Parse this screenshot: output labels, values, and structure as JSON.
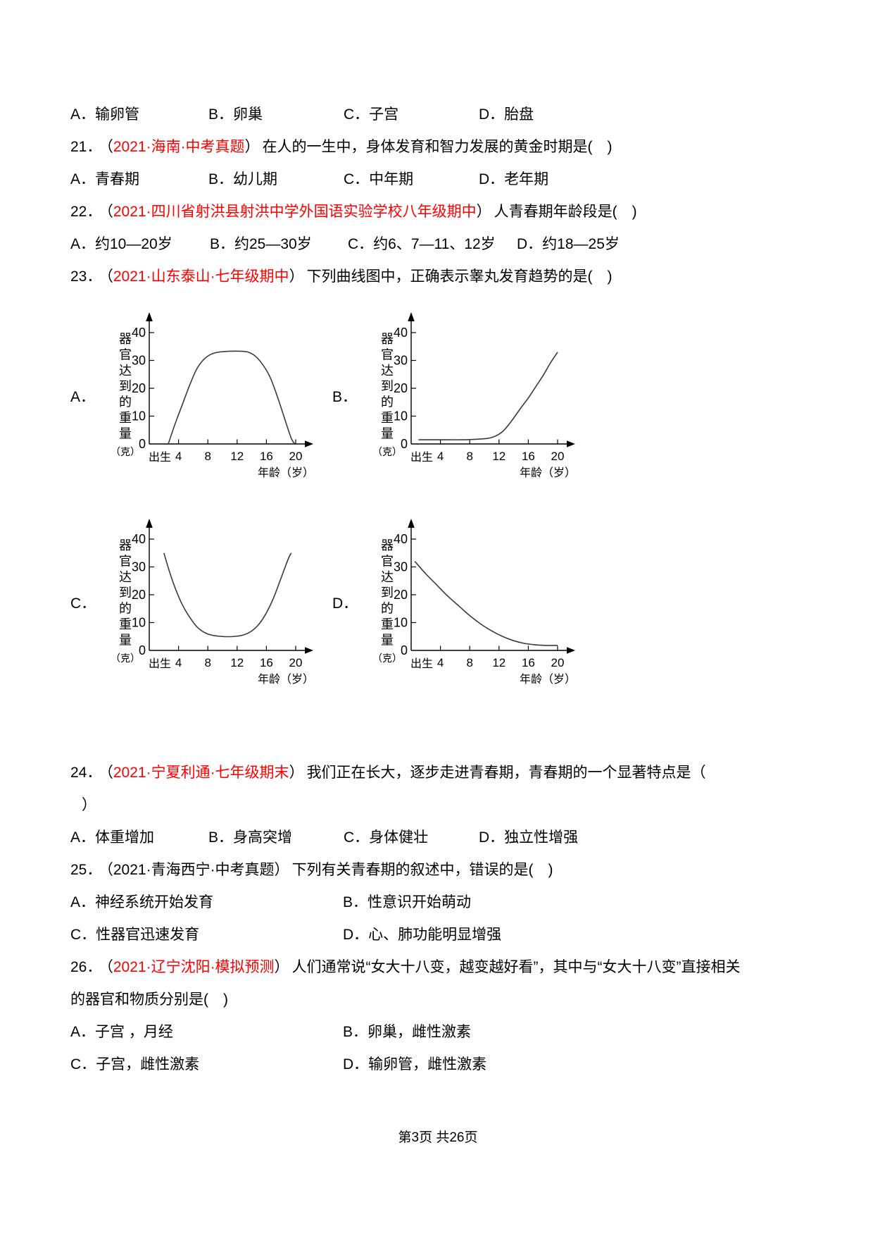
{
  "punct": {
    "open": "（",
    "close": "）"
  },
  "carryover_options": {
    "a": "A．输卵管",
    "b": "B．卵巢",
    "c": "C．子宫",
    "d": "D．胎盘"
  },
  "questions": [
    {
      "number": "21．",
      "source": "2021·海南·中考真题",
      "stem": "在人的一生中，身体发育和智力发展的黄金时期是(　)",
      "options": [
        "A．青春期",
        "B．幼儿期",
        "C．中年期",
        "D．老年期"
      ]
    },
    {
      "number": "22．",
      "source": "2021·四川省射洪县射洪中学外国语实验学校八年级期中",
      "stem": "人青春期年龄段是(　)",
      "options": [
        "A．约10—20岁",
        "B．约25—30岁",
        "C．约6、7—11、12岁",
        "D．约18—25岁"
      ]
    },
    {
      "number": "23．",
      "source": "2021·山东泰山·七年级期中",
      "stem": "下列曲线图中，正确表示睾丸发育趋势的是(　)"
    },
    {
      "number": "24．",
      "source": "2021·宁夏利通·七年级期末",
      "stem": "我们正在长大，逐步走进青春期，青春期的一个显著特点是（",
      "stem2": "）",
      "options": [
        "A．体重增加",
        "B．身高突增",
        "C．身体健壮",
        "D．独立性增强"
      ]
    },
    {
      "number": "25．",
      "source": "2021·青海西宁·中考真题",
      "stem": "下列有关青春期的叙述中，错误的是(　)",
      "options": [
        "A．神经系统开始发育",
        "B．性意识开始萌动",
        "C．性器官迅速发育",
        "D．心、肺功能明显增强"
      ]
    },
    {
      "number": "26．",
      "source": "2021·辽宁沈阳·模拟预测",
      "stem": "人们通常说“女大十八变，越变越好看”，其中与“女大十八变”直接相关",
      "stem2": "的器官和物质分别是(　)",
      "options": [
        "A．子宫 ，月经",
        "B．卵巢，雌性激素",
        "C．子宫，雌性激素",
        "D．输卵管，雌性激素"
      ]
    }
  ],
  "chart_data": [
    {
      "type": "line",
      "label": "A．",
      "y_axis_chars": [
        "器",
        "官",
        "达",
        "到",
        "的",
        "重",
        "量"
      ],
      "y_axis_unit": "（克）",
      "y_ticks": [
        0,
        10,
        20,
        30,
        40
      ],
      "x_tick_years": [
        4,
        8,
        12,
        16,
        20
      ],
      "birth_label": "出生",
      "x_axis_label": "年龄（岁）",
      "ylim": [
        0,
        45
      ],
      "xlim": [
        0,
        22
      ],
      "points": [
        [
          2.6,
          0
        ],
        [
          3.5,
          7
        ],
        [
          4.5,
          14
        ],
        [
          5.5,
          21
        ],
        [
          6.5,
          27
        ],
        [
          7.5,
          30.5
        ],
        [
          8.5,
          32.3
        ],
        [
          9.5,
          33
        ],
        [
          11,
          33.3
        ],
        [
          12.5,
          33.3
        ],
        [
          13.5,
          33
        ],
        [
          14.5,
          31.5
        ],
        [
          15.5,
          28.5
        ],
        [
          16.5,
          24
        ],
        [
          17.5,
          17
        ],
        [
          18.5,
          9
        ],
        [
          19.4,
          2
        ],
        [
          19.9,
          0
        ]
      ]
    },
    {
      "type": "line",
      "label": "B．",
      "y_axis_chars": [
        "器",
        "官",
        "达",
        "到",
        "的",
        "重",
        "量"
      ],
      "y_axis_unit": "（克）",
      "y_ticks": [
        0,
        10,
        20,
        30,
        40
      ],
      "x_tick_years": [
        4,
        8,
        12,
        16,
        20
      ],
      "birth_label": "出生",
      "x_axis_label": "年龄（岁）",
      "ylim": [
        0,
        45
      ],
      "xlim": [
        0,
        22
      ],
      "points": [
        [
          1,
          1.5
        ],
        [
          4,
          1.5
        ],
        [
          7,
          1.5
        ],
        [
          9,
          1.7
        ],
        [
          10.5,
          2
        ],
        [
          11.5,
          2.8
        ],
        [
          12.5,
          4.5
        ],
        [
          13.5,
          7.5
        ],
        [
          15,
          13
        ],
        [
          16,
          16.5
        ],
        [
          17,
          20.5
        ],
        [
          18,
          24.5
        ],
        [
          19,
          29
        ],
        [
          20,
          33
        ]
      ]
    },
    {
      "type": "line",
      "label": "C．",
      "y_axis_chars": [
        "器",
        "官",
        "达",
        "到",
        "的",
        "重",
        "量"
      ],
      "y_axis_unit": "（克）",
      "y_ticks": [
        0,
        10,
        20,
        30,
        40
      ],
      "x_tick_years": [
        4,
        8,
        12,
        16,
        20
      ],
      "birth_label": "出生",
      "x_axis_label": "年龄（岁）",
      "ylim": [
        0,
        45
      ],
      "xlim": [
        0,
        22
      ],
      "points": [
        [
          2,
          35
        ],
        [
          2.8,
          28
        ],
        [
          3.6,
          22
        ],
        [
          4.5,
          16.5
        ],
        [
          5.5,
          12
        ],
        [
          6.5,
          8.5
        ],
        [
          7.5,
          6.5
        ],
        [
          8.5,
          5.5
        ],
        [
          10,
          5
        ],
        [
          11.5,
          5
        ],
        [
          12.8,
          5.5
        ],
        [
          14,
          7
        ],
        [
          15,
          9.5
        ],
        [
          16,
          13.5
        ],
        [
          17,
          19
        ],
        [
          18,
          26
        ],
        [
          19,
          33
        ],
        [
          19.4,
          35
        ]
      ]
    },
    {
      "type": "line",
      "label": "D．",
      "y_axis_chars": [
        "器",
        "官",
        "达",
        "到",
        "的",
        "重",
        "量"
      ],
      "y_axis_unit": "（克）",
      "y_ticks": [
        0,
        10,
        20,
        30,
        40
      ],
      "x_tick_years": [
        4,
        8,
        12,
        16,
        20
      ],
      "birth_label": "出生",
      "x_axis_label": "年龄（岁）",
      "ylim": [
        0,
        45
      ],
      "xlim": [
        0,
        22
      ],
      "points": [
        [
          0.5,
          32
        ],
        [
          2,
          27.5
        ],
        [
          3.5,
          23.5
        ],
        [
          5,
          19.5
        ],
        [
          6.5,
          16
        ],
        [
          8,
          12.5
        ],
        [
          9.5,
          9.5
        ],
        [
          11,
          7
        ],
        [
          12.5,
          5
        ],
        [
          14,
          3.5
        ],
        [
          15.5,
          2.5
        ],
        [
          17,
          2
        ],
        [
          18.5,
          1.8
        ],
        [
          20,
          1.8
        ]
      ]
    }
  ],
  "footer": "第3页 共26页"
}
